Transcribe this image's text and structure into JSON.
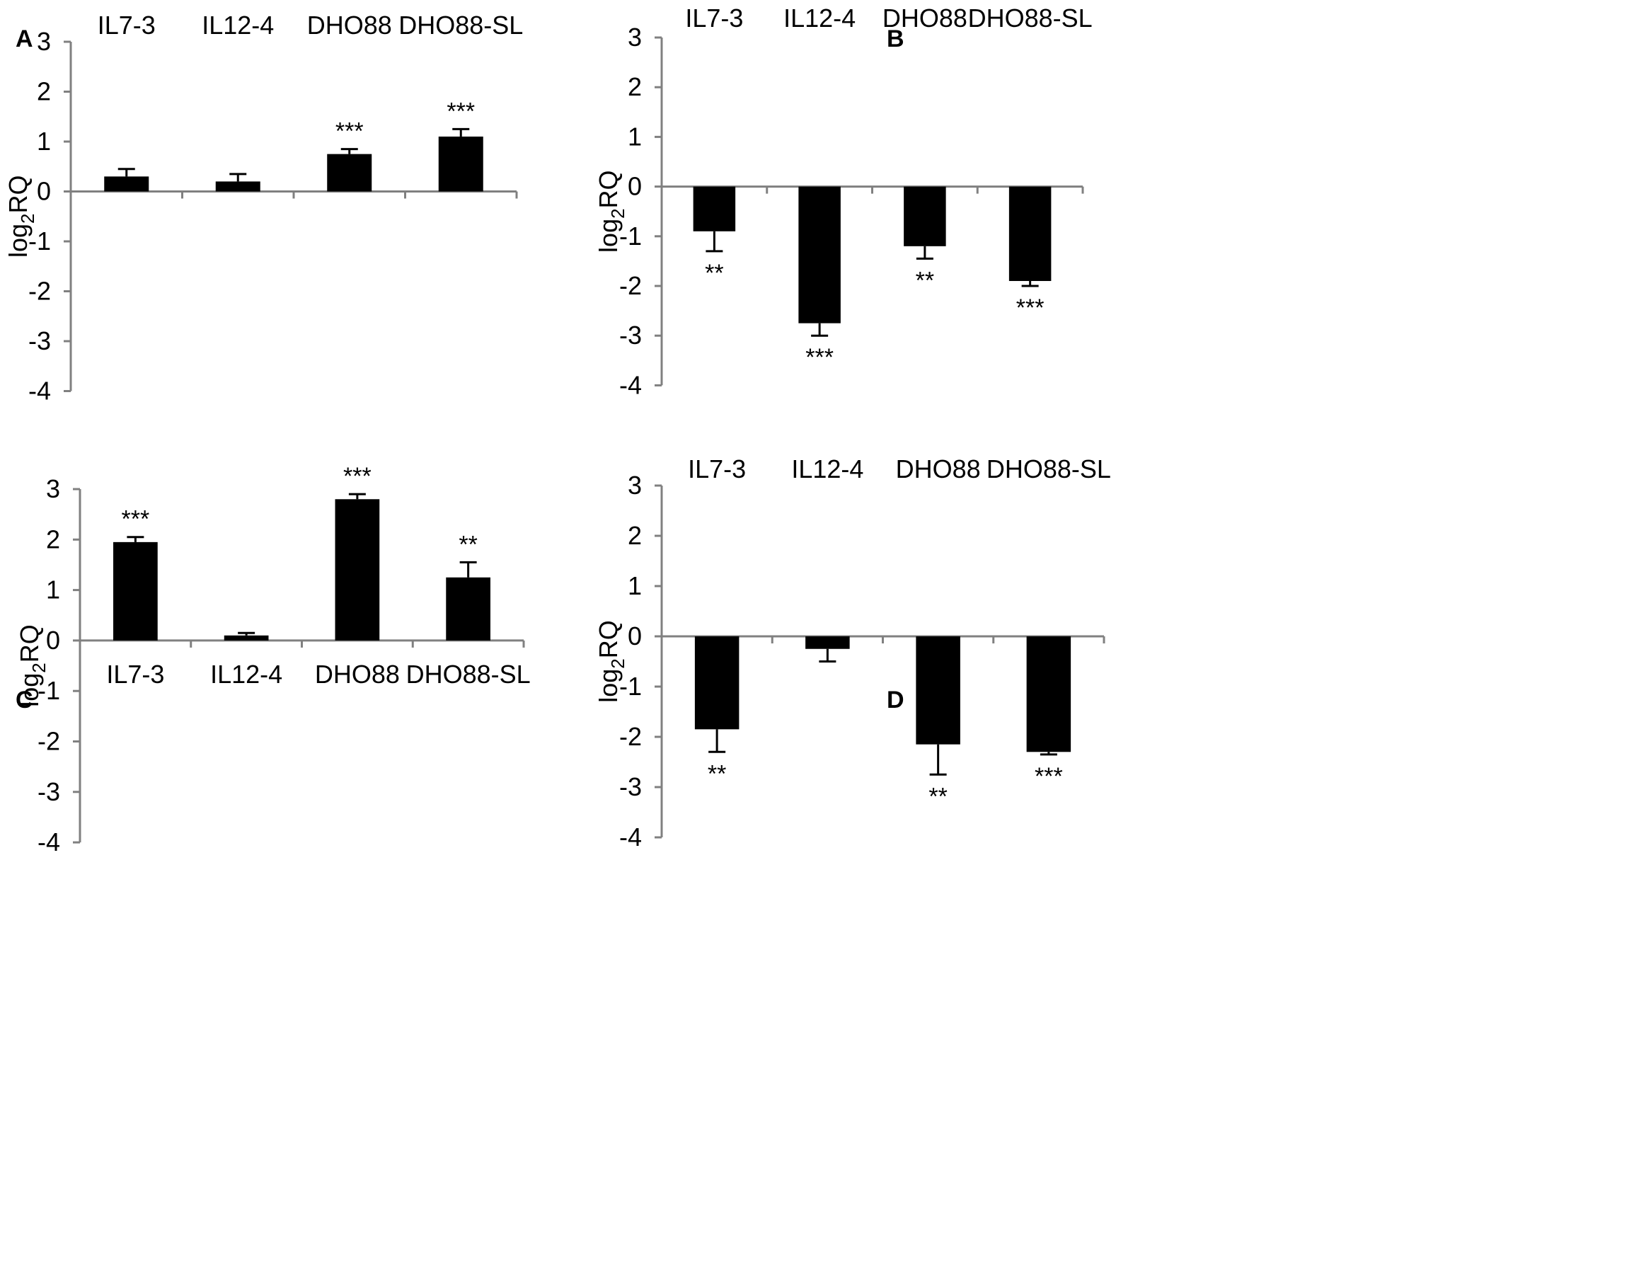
{
  "figure": {
    "panels": [
      "A",
      "B",
      "C",
      "D"
    ],
    "y_axis_label": {
      "base": "log",
      "subscript": "2",
      "suffix": "RQ"
    }
  },
  "colors": {
    "bar": "#000000",
    "axis": "#808080",
    "text": "#000000",
    "background": "#ffffff"
  },
  "chart_data": [
    {
      "panel": "A",
      "type": "bar",
      "categories": [
        "IL7-3",
        "IL12-4",
        "DHO88",
        "DHO88-SL"
      ],
      "category_label_position": "top",
      "values": [
        0.3,
        0.2,
        0.75,
        1.1
      ],
      "errors": [
        0.15,
        0.15,
        0.1,
        0.15
      ],
      "significance": [
        "",
        "",
        "***",
        "***"
      ],
      "ylabel": "log2RQ",
      "ylim": [
        -4,
        3
      ],
      "yticks": [
        3,
        2,
        1,
        0,
        -1,
        -2,
        -3,
        -4
      ],
      "grid": false
    },
    {
      "panel": "B",
      "type": "bar",
      "categories": [
        "IL7-3",
        "IL12-4",
        "DHO88",
        "DHO88-SL"
      ],
      "category_label_position": "top",
      "values": [
        -0.9,
        -2.75,
        -1.2,
        -1.9
      ],
      "errors": [
        0.4,
        0.25,
        0.25,
        0.1
      ],
      "significance": [
        "**",
        "***",
        "**",
        "***"
      ],
      "ylabel": "log2RQ",
      "ylim": [
        -4,
        3
      ],
      "yticks": [
        3,
        2,
        1,
        0,
        -1,
        -2,
        -3,
        -4
      ],
      "grid": false
    },
    {
      "panel": "C",
      "type": "bar",
      "categories": [
        "IL7-3",
        "IL12-4",
        "DHO88",
        "DHO88-SL"
      ],
      "category_label_position": "below-zero",
      "values": [
        1.95,
        0.1,
        2.8,
        1.25
      ],
      "errors": [
        0.1,
        0.05,
        0.1,
        0.3
      ],
      "significance": [
        "***",
        "",
        "***",
        "**"
      ],
      "ylabel": "log2RQ",
      "ylim": [
        -4,
        3
      ],
      "yticks": [
        3,
        2,
        1,
        0,
        -1,
        -2,
        -3,
        -4
      ],
      "grid": false
    },
    {
      "panel": "D",
      "type": "bar",
      "categories": [
        "IL7-3",
        "IL12-4",
        "DHO88",
        "DHO88-SL"
      ],
      "category_label_position": "top",
      "values": [
        -1.85,
        -0.25,
        -2.15,
        -2.3
      ],
      "errors": [
        0.45,
        0.25,
        0.6,
        0.05
      ],
      "significance": [
        "**",
        "",
        "**",
        "***"
      ],
      "ylabel": "log2RQ",
      "ylim": [
        -4,
        3
      ],
      "yticks": [
        3,
        2,
        1,
        0,
        -1,
        -2,
        -3,
        -4
      ],
      "grid": false
    }
  ]
}
